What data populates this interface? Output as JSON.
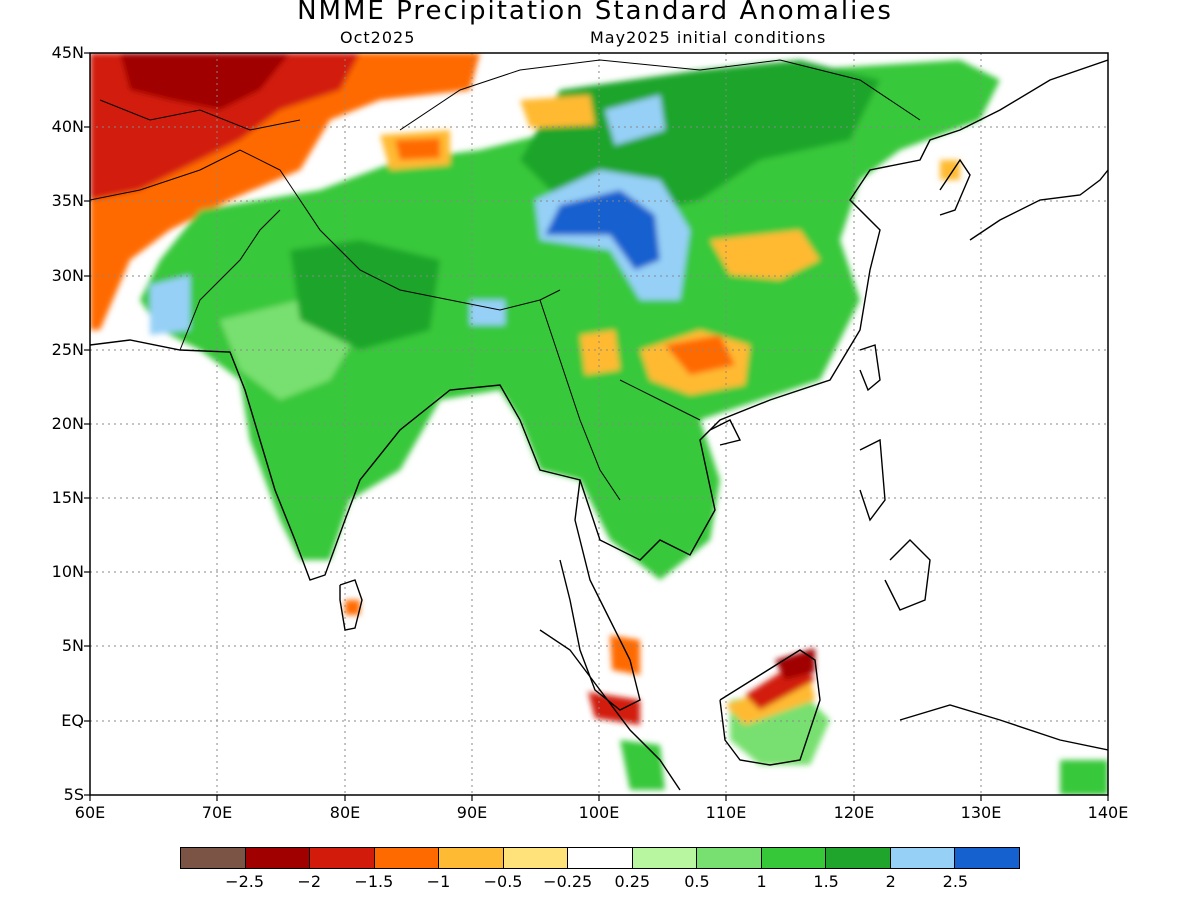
{
  "title": "NMME Precipitation Standard Anomalies",
  "forecast_month": "Oct2025",
  "init_conditions": "May2025 initial conditions",
  "lat_labels": [
    "45N",
    "40N",
    "35N",
    "30N",
    "25N",
    "20N",
    "15N",
    "10N",
    "5N",
    "EQ",
    "5S"
  ],
  "lon_labels": [
    "60E",
    "70E",
    "80E",
    "90E",
    "100E",
    "110E",
    "120E",
    "130E",
    "140E"
  ],
  "colorbar": {
    "colors": [
      "#7b5446",
      "#a00000",
      "#d21b0a",
      "#ff6a00",
      "#ffba33",
      "#ffe27a",
      "#ffffff",
      "#b8f7a0",
      "#78e070",
      "#37c83a",
      "#1fa52b",
      "#96d0f7",
      "#1561cf"
    ],
    "labels": [
      "−2.5",
      "−2",
      "−1.5",
      "−1",
      "−0.5",
      "−0.25",
      "0.25",
      "0.5",
      "1",
      "1.5",
      "2",
      "2.5"
    ]
  }
}
